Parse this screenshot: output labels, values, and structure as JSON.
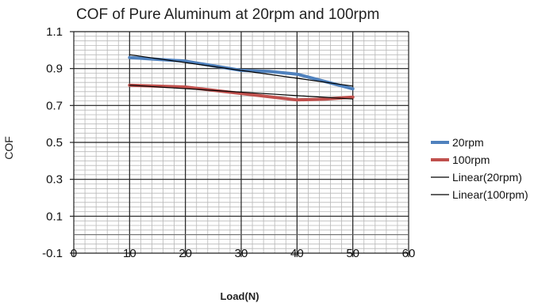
{
  "chart_data": {
    "type": "line",
    "title": "COF of Pure Aluminum at 20rpm and 100rpm",
    "xlabel": "Load(N)",
    "ylabel": "COF",
    "xlim": [
      0,
      60
    ],
    "ylim": [
      -0.1,
      1.1
    ],
    "x_ticks": [
      "0",
      "10",
      "20",
      "30",
      "40",
      "50",
      "60"
    ],
    "y_ticks": [
      "1.1",
      "0.9",
      "0.7",
      "0.5",
      "0.3",
      "0.1",
      "-0.1"
    ],
    "grid": true,
    "legend_position": "right",
    "series": [
      {
        "name": "20rpm",
        "color": "#4f81bd",
        "style": "thick",
        "points": [
          [
            10,
            0.96
          ],
          [
            20,
            0.94
          ],
          [
            30,
            0.89
          ],
          [
            35,
            0.885
          ],
          [
            40,
            0.87
          ],
          [
            50,
            0.79
          ]
        ]
      },
      {
        "name": "100rpm",
        "color": "#c0504d",
        "style": "thick",
        "points": [
          [
            10,
            0.81
          ],
          [
            20,
            0.8
          ],
          [
            30,
            0.765
          ],
          [
            40,
            0.73
          ],
          [
            45,
            0.735
          ],
          [
            50,
            0.745
          ]
        ]
      },
      {
        "name": "Linear(20rpm)",
        "color": "#000000",
        "style": "thin",
        "points": [
          [
            10,
            0.975
          ],
          [
            50,
            0.805
          ]
        ]
      },
      {
        "name": "Linear(100rpm)",
        "color": "#000000",
        "style": "thin",
        "points": [
          [
            10,
            0.81
          ],
          [
            50,
            0.735
          ]
        ]
      }
    ]
  }
}
